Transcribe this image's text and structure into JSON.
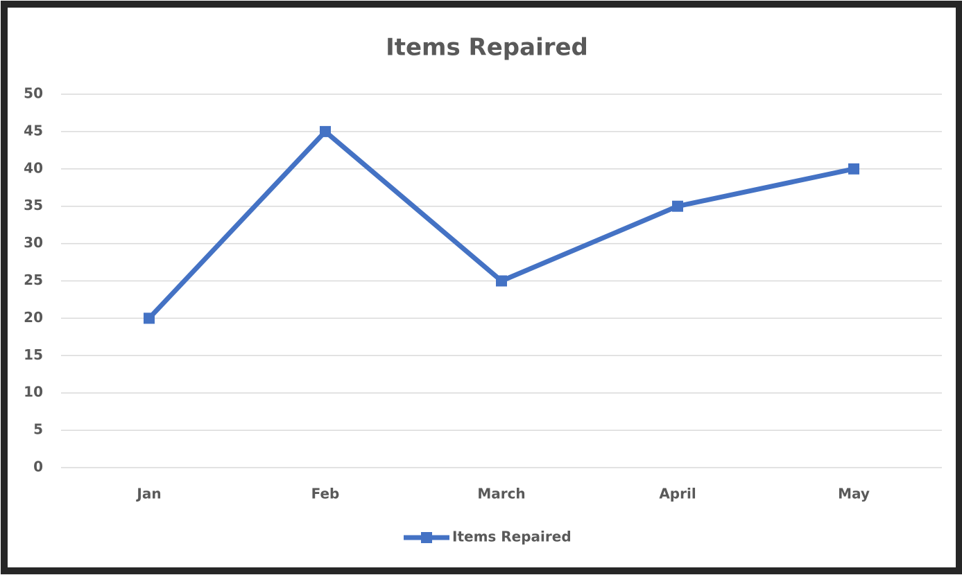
{
  "chart_data": {
    "type": "line",
    "title": "Items Repaired",
    "categories": [
      "Jan",
      "Feb",
      "March",
      "April",
      "May"
    ],
    "series": [
      {
        "name": "Items Repaired",
        "color": "#4472c4",
        "values": [
          20,
          45,
          25,
          35,
          40
        ]
      }
    ],
    "ylim": [
      0,
      50
    ],
    "yticks": [
      0,
      5,
      10,
      15,
      20,
      25,
      30,
      35,
      40,
      45,
      50
    ],
    "grid": true,
    "legend": "bottom"
  }
}
